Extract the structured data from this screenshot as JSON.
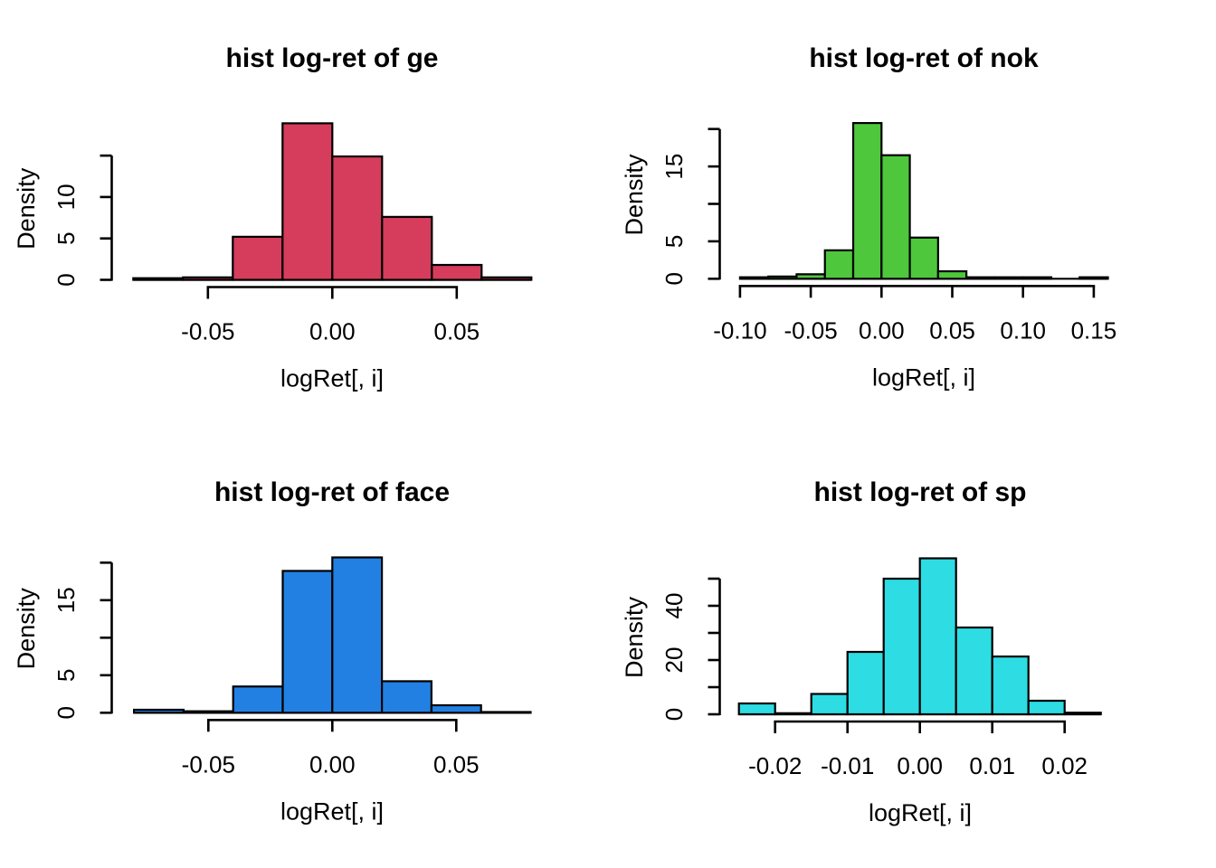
{
  "page": {
    "background": "#ffffff",
    "figure_kind": "R base-graphics 2x2 histogram grid"
  },
  "chart_data": [
    {
      "id": "ge",
      "type": "bar",
      "subtype": "histogram-density",
      "title": "hist log-ret of ge",
      "xlabel": "logRet[, i]",
      "ylabel": "Density",
      "bar_color": "#D63C5C",
      "bins": {
        "start": -0.08,
        "width": 0.02
      },
      "densities": [
        0.2,
        0.3,
        5.2,
        18.9,
        14.9,
        7.6,
        1.8,
        0.3
      ],
      "x_ticks": [
        {
          "v": -0.05,
          "label": "-0.05"
        },
        {
          "v": 0.0,
          "label": "0.00"
        },
        {
          "v": 0.05,
          "label": "0.05"
        }
      ],
      "y_ticks": [
        {
          "v": 0,
          "label": "0"
        },
        {
          "v": 5,
          "label": "5"
        },
        {
          "v": 10,
          "label": "10"
        },
        {
          "v": 15,
          "label": ""
        }
      ],
      "xlim": [
        -0.08,
        0.08
      ],
      "ylim": [
        0,
        19.7
      ],
      "grid": false,
      "legend": "none"
    },
    {
      "id": "nok",
      "type": "bar",
      "subtype": "histogram-density",
      "title": "hist log-ret of nok",
      "xlabel": "logRet[, i]",
      "ylabel": "Density",
      "bar_color": "#4EC73C",
      "bins": {
        "start": -0.1,
        "width": 0.02
      },
      "densities": [
        0.2,
        0.3,
        0.6,
        3.8,
        20.8,
        16.5,
        5.5,
        1.0,
        0.2,
        0.2,
        0.2,
        0,
        0.2
      ],
      "x_ticks": [
        {
          "v": -0.1,
          "label": "-0.10"
        },
        {
          "v": -0.05,
          "label": "-0.05"
        },
        {
          "v": 0.0,
          "label": "0.00"
        },
        {
          "v": 0.05,
          "label": "0.05"
        },
        {
          "v": 0.1,
          "label": "0.10"
        },
        {
          "v": 0.15,
          "label": "0.15"
        }
      ],
      "y_ticks": [
        {
          "v": 0,
          "label": "0"
        },
        {
          "v": 5,
          "label": "5"
        },
        {
          "v": 10,
          "label": ""
        },
        {
          "v": 15,
          "label": "15"
        },
        {
          "v": 20,
          "label": ""
        }
      ],
      "xlim": [
        -0.1,
        0.16
      ],
      "ylim": [
        0,
        21.6
      ],
      "grid": false,
      "legend": "none"
    },
    {
      "id": "face",
      "type": "bar",
      "subtype": "histogram-density",
      "title": "hist log-ret of face",
      "xlabel": "logRet[, i]",
      "ylabel": "Density",
      "bar_color": "#2280E3",
      "bins": {
        "start": -0.08,
        "width": 0.02
      },
      "densities": [
        0.4,
        0.2,
        3.5,
        18.9,
        20.7,
        4.2,
        1.0,
        0.1
      ],
      "x_ticks": [
        {
          "v": -0.05,
          "label": "-0.05"
        },
        {
          "v": 0.0,
          "label": "0.00"
        },
        {
          "v": 0.05,
          "label": "0.05"
        }
      ],
      "y_ticks": [
        {
          "v": 0,
          "label": "0"
        },
        {
          "v": 5,
          "label": "5"
        },
        {
          "v": 10,
          "label": ""
        },
        {
          "v": 15,
          "label": "15"
        },
        {
          "v": 20,
          "label": ""
        }
      ],
      "xlim": [
        -0.08,
        0.08
      ],
      "ylim": [
        0,
        21.5
      ],
      "grid": false,
      "legend": "none"
    },
    {
      "id": "sp",
      "type": "bar",
      "subtype": "histogram-density",
      "title": "hist log-ret of sp",
      "xlabel": "logRet[, i]",
      "ylabel": "Density",
      "bar_color": "#2EDCE3",
      "bins": {
        "start": -0.025,
        "width": 0.005
      },
      "densities": [
        4,
        0.4,
        7.5,
        23,
        50,
        57.5,
        32,
        21.3,
        5,
        0.6
      ],
      "x_ticks": [
        {
          "v": -0.02,
          "label": "-0.02"
        },
        {
          "v": -0.01,
          "label": "-0.01"
        },
        {
          "v": 0.0,
          "label": "0.00"
        },
        {
          "v": 0.01,
          "label": "0.01"
        },
        {
          "v": 0.02,
          "label": "0.02"
        }
      ],
      "y_ticks": [
        {
          "v": 0,
          "label": "0"
        },
        {
          "v": 10,
          "label": ""
        },
        {
          "v": 20,
          "label": "20"
        },
        {
          "v": 30,
          "label": ""
        },
        {
          "v": 40,
          "label": "40"
        },
        {
          "v": 50,
          "label": ""
        }
      ],
      "xlim": [
        -0.025,
        0.025
      ],
      "ylim": [
        0,
        59.8
      ],
      "grid": false,
      "legend": "none"
    }
  ]
}
